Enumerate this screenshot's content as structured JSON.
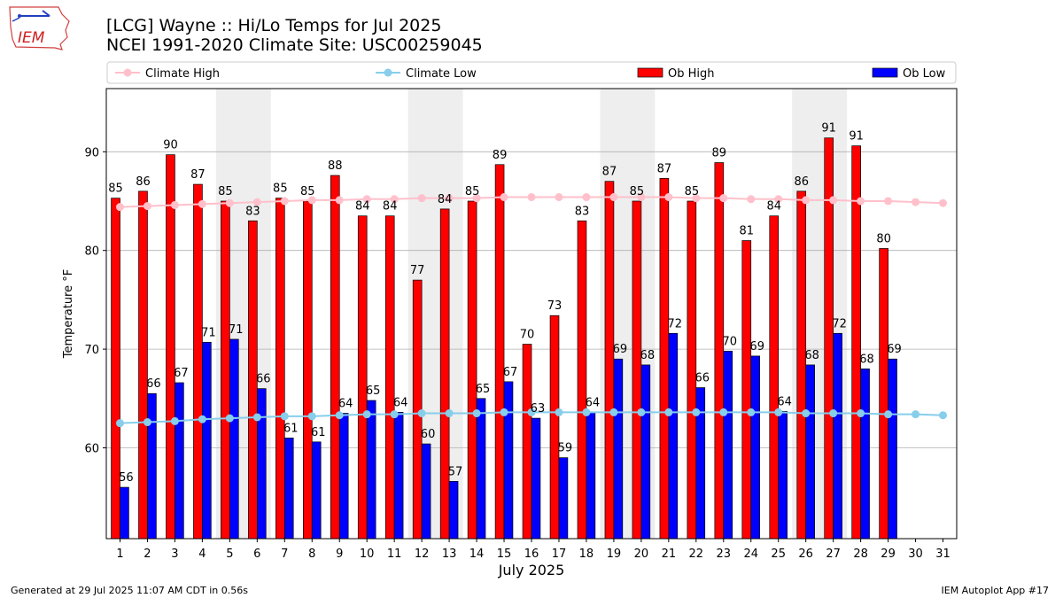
{
  "header": {
    "title_line1": "[LCG] Wayne :: Hi/Lo Temps for Jul 2025",
    "title_line2": "NCEI 1991-2020 Climate Site: USC00259045",
    "logo_text": "IEM"
  },
  "footer": {
    "generated": "Generated at 29 Jul 2025 11:07 AM CDT in 0.56s",
    "app": "IEM Autoplot App #17"
  },
  "colors": {
    "ob_high": "#ff0000",
    "ob_low": "#0000ff",
    "climate_high": "#ffc0cb",
    "climate_low": "#87ceeb",
    "weekend_shade": "#eeeeee",
    "grid": "#b0b0b0"
  },
  "chart_data": {
    "type": "bar",
    "xlabel": "July 2025",
    "ylabel": "Temperature °F",
    "ylim": [
      50.8,
      96.4
    ],
    "yticks": [
      60,
      70,
      80,
      90
    ],
    "grid": "horizontal",
    "legend_placement": "top",
    "categories": [
      "1",
      "2",
      "3",
      "4",
      "5",
      "6",
      "7",
      "8",
      "9",
      "10",
      "11",
      "12",
      "13",
      "14",
      "15",
      "16",
      "17",
      "18",
      "19",
      "20",
      "21",
      "22",
      "23",
      "24",
      "25",
      "26",
      "27",
      "28",
      "29",
      "30",
      "31"
    ],
    "shaded_days": [
      [
        5,
        6
      ],
      [
        12,
        13
      ],
      [
        19,
        20
      ],
      [
        26,
        27
      ]
    ],
    "series": [
      {
        "name": "Climate High",
        "kind": "line",
        "values": [
          84.4,
          84.5,
          84.6,
          84.7,
          84.8,
          84.9,
          85.0,
          85.1,
          85.1,
          85.2,
          85.2,
          85.3,
          85.3,
          85.3,
          85.4,
          85.4,
          85.4,
          85.4,
          85.4,
          85.4,
          85.4,
          85.3,
          85.3,
          85.2,
          85.2,
          85.1,
          85.1,
          85.0,
          85.0,
          84.9,
          84.8
        ]
      },
      {
        "name": "Climate Low",
        "kind": "line",
        "values": [
          62.5,
          62.6,
          62.7,
          62.9,
          63.0,
          63.1,
          63.2,
          63.2,
          63.3,
          63.4,
          63.4,
          63.5,
          63.5,
          63.5,
          63.6,
          63.6,
          63.6,
          63.6,
          63.6,
          63.6,
          63.6,
          63.6,
          63.6,
          63.6,
          63.6,
          63.5,
          63.5,
          63.5,
          63.4,
          63.4,
          63.3
        ]
      },
      {
        "name": "Ob High",
        "kind": "bar",
        "values": [
          85.3,
          86.0,
          89.7,
          86.7,
          85.0,
          83.0,
          85.3,
          85.0,
          87.6,
          83.5,
          83.5,
          77.0,
          84.2,
          85.0,
          88.7,
          70.5,
          73.4,
          83.0,
          87.0,
          85.0,
          87.3,
          85.0,
          88.9,
          81.0,
          83.5,
          86.0,
          91.4,
          90.6,
          80.2,
          null,
          null
        ],
        "labels": [
          "85",
          "86",
          "90",
          "87",
          "85",
          "83",
          "85",
          "85",
          "88",
          "84",
          "84",
          "77",
          "84",
          "85",
          "89",
          "70",
          "73",
          "83",
          "87",
          "85",
          "87",
          "85",
          "89",
          "81",
          "84",
          "86",
          "91",
          "91",
          "80",
          "",
          ""
        ]
      },
      {
        "name": "Ob Low",
        "kind": "bar",
        "values": [
          56.0,
          65.5,
          66.6,
          70.7,
          71.0,
          66.0,
          61.0,
          60.6,
          63.5,
          64.8,
          63.6,
          60.4,
          56.6,
          65.0,
          66.7,
          63.0,
          59.0,
          63.6,
          69.0,
          68.4,
          71.6,
          66.1,
          69.8,
          69.3,
          63.7,
          68.4,
          71.6,
          68.0,
          69.0,
          null,
          null
        ],
        "labels": [
          "56",
          "66",
          "67",
          "71",
          "71",
          "66",
          "61",
          "61",
          "64",
          "65",
          "64",
          "60",
          "57",
          "65",
          "67",
          "63",
          "59",
          "64",
          "69",
          "68",
          "72",
          "66",
          "70",
          "69",
          "64",
          "68",
          "72",
          "68",
          "69",
          "",
          ""
        ]
      }
    ]
  }
}
